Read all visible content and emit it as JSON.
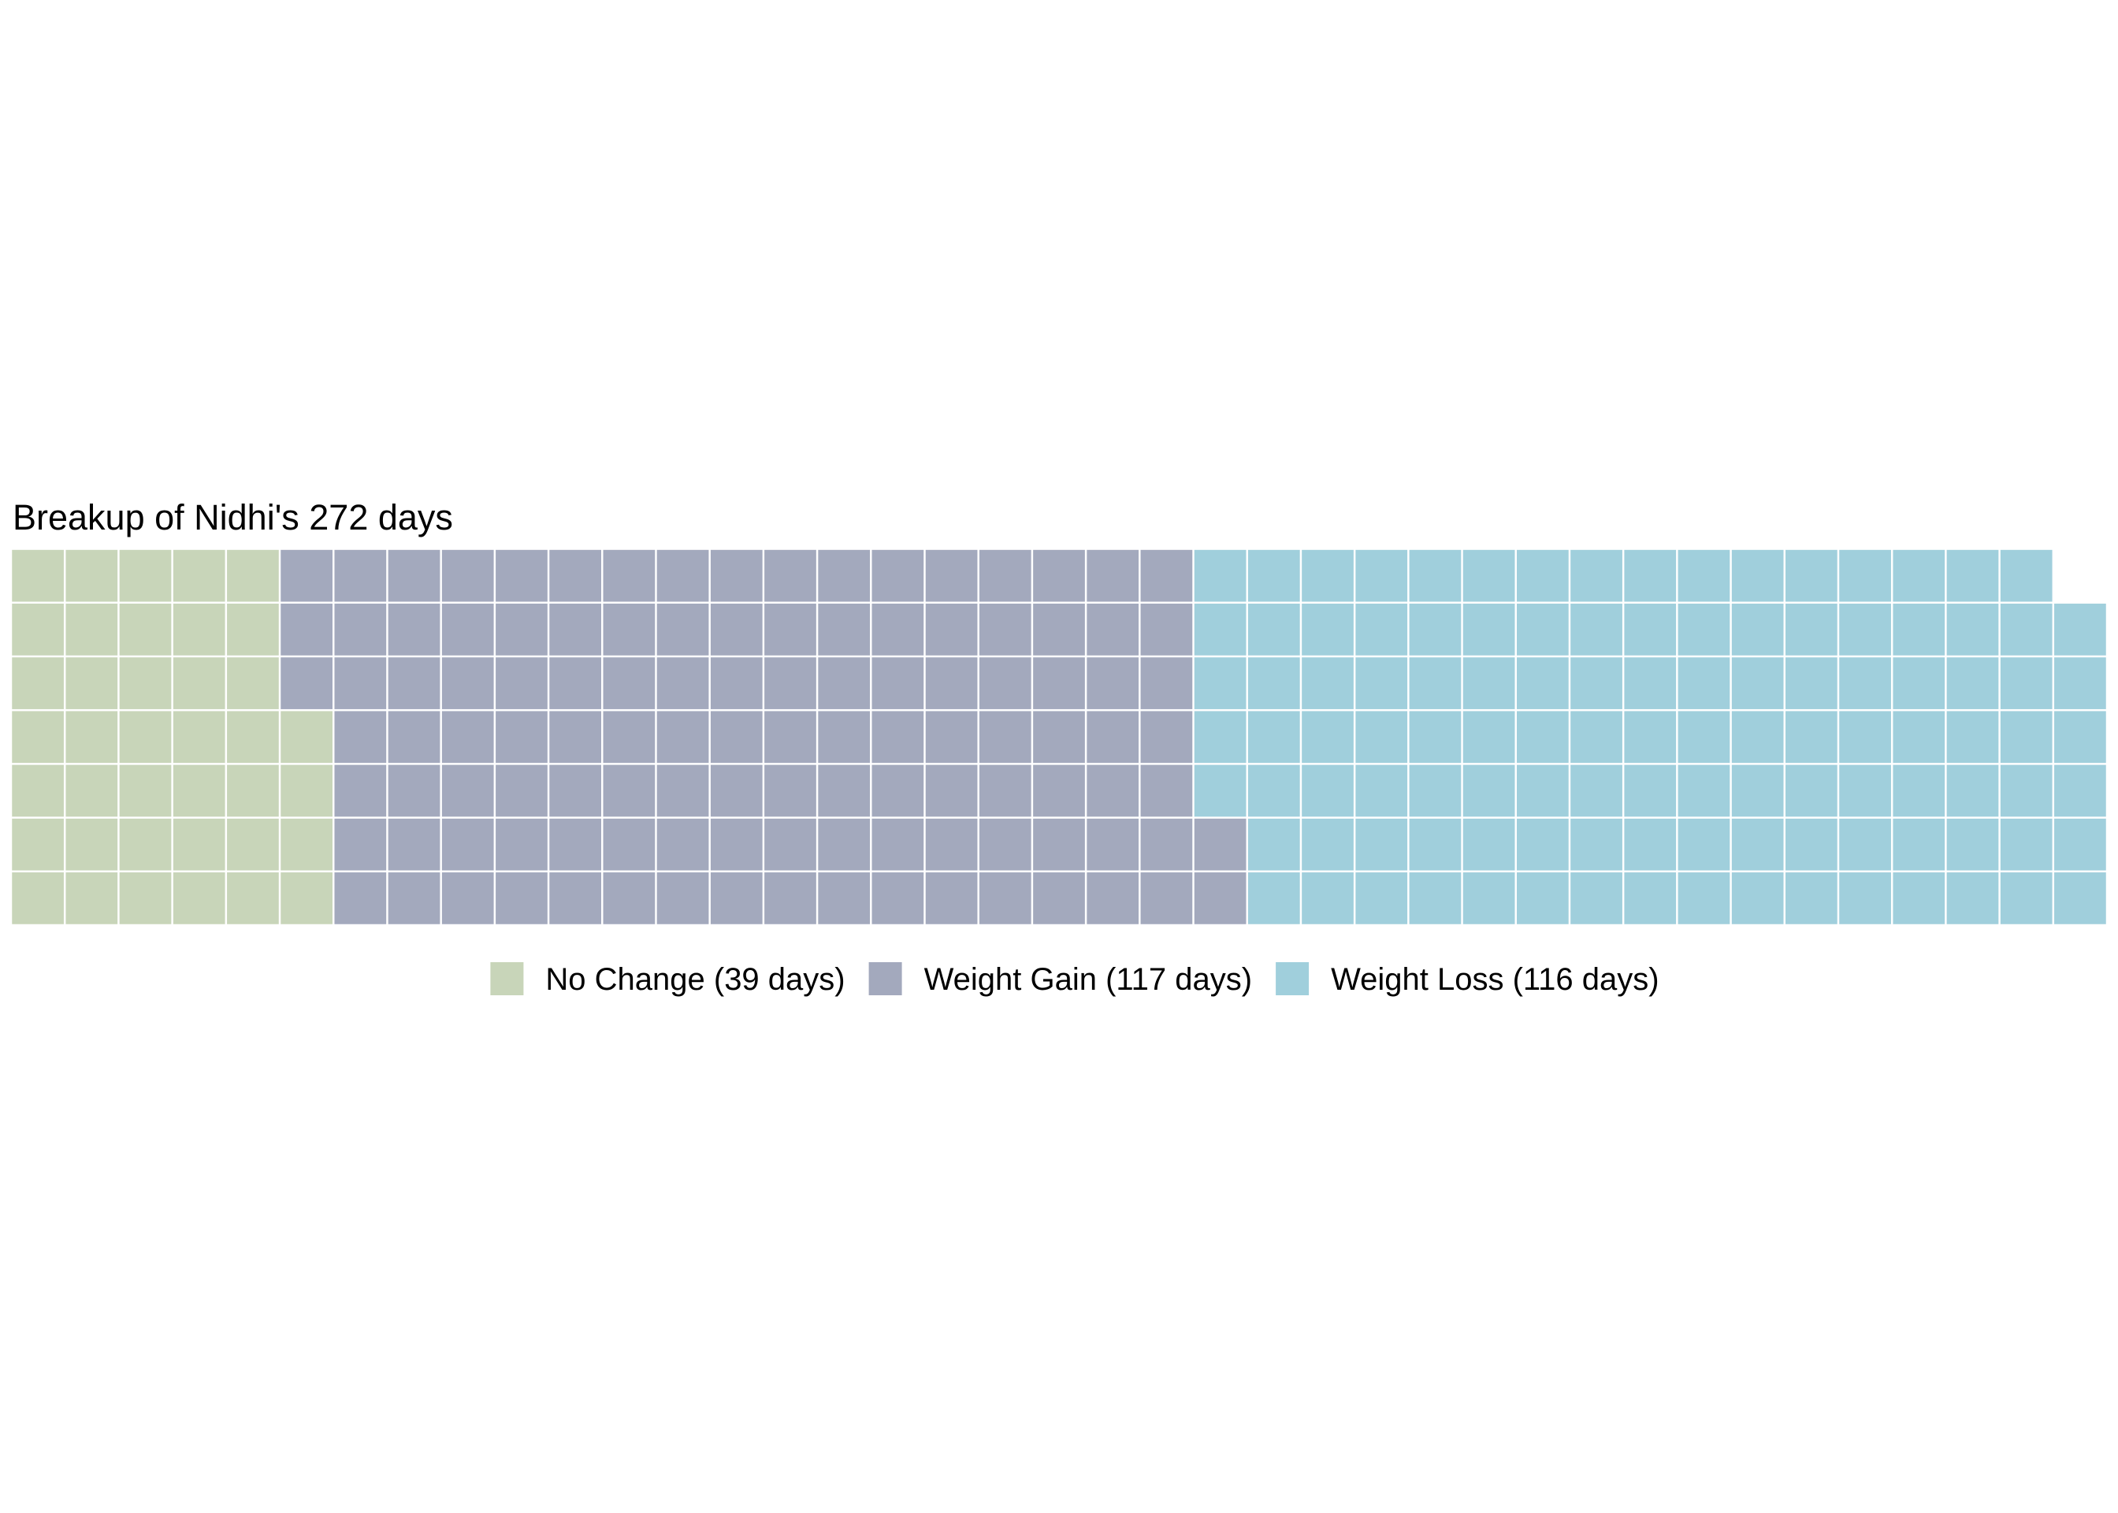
{
  "chart_data": {
    "type": "waffle",
    "title": "Breakup of Nidhi's 272 days",
    "rows": 7,
    "fill_order": "column-major, top to bottom within each column",
    "legend_position": "bottom",
    "categories": [
      {
        "name": "No Change (39 days)",
        "value": 39,
        "color": "#c8d5b9"
      },
      {
        "name": "Weight Gain (117 days)",
        "value": 117,
        "color": "#a3a9bd"
      },
      {
        "name": "Weight Loss (116 days)",
        "value": 116,
        "color": "#a0cfdc"
      }
    ],
    "total": 272
  }
}
